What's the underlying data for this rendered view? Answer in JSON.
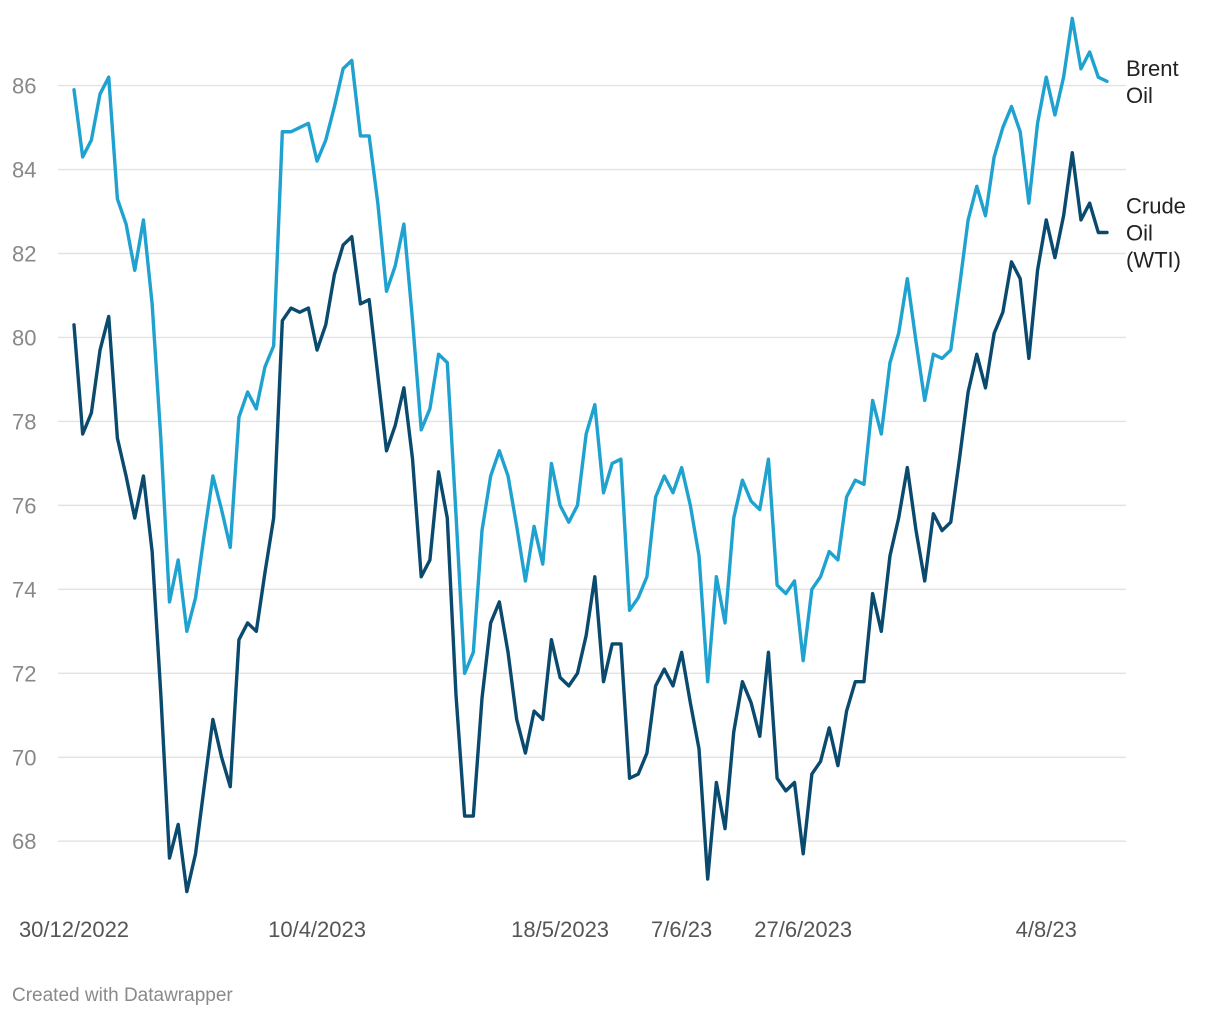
{
  "chart_data": {
    "type": "line",
    "title": "",
    "xlabel": "",
    "ylabel": "",
    "ylim": [
      66.6,
      87.8
    ],
    "yticks": [
      68,
      70,
      72,
      74,
      76,
      78,
      80,
      82,
      84,
      86
    ],
    "x_tick_labels": [
      {
        "index": 0,
        "label": "30/12/2022"
      },
      {
        "index": 28,
        "label": "10/4/2023"
      },
      {
        "index": 56,
        "label": "18/5/2023"
      },
      {
        "index": 70,
        "label": "7/6/23"
      },
      {
        "index": 84,
        "label": "27/6/2023"
      },
      {
        "index": 112,
        "label": "4/8/23"
      }
    ],
    "grid": true,
    "series": [
      {
        "name": "Brent Oil",
        "label_lines": [
          "Brent",
          "Oil"
        ],
        "color": "#1fa2cf",
        "values": [
          85.9,
          84.3,
          84.7,
          85.8,
          86.2,
          83.3,
          82.7,
          81.6,
          82.8,
          80.8,
          77.6,
          73.7,
          74.7,
          73.0,
          73.8,
          75.3,
          76.7,
          75.9,
          75.0,
          78.1,
          78.7,
          78.3,
          79.3,
          79.8,
          84.9,
          84.9,
          85.0,
          85.1,
          84.2,
          84.7,
          85.5,
          86.4,
          86.6,
          84.8,
          84.8,
          83.2,
          81.1,
          81.7,
          82.7,
          80.4,
          77.8,
          78.3,
          79.6,
          79.4,
          75.8,
          72.0,
          72.5,
          75.4,
          76.7,
          77.3,
          76.7,
          75.5,
          74.2,
          75.5,
          74.6,
          77.0,
          76.0,
          75.6,
          76.0,
          77.7,
          78.4,
          76.3,
          77.0,
          77.1,
          73.5,
          73.8,
          74.3,
          76.2,
          76.7,
          76.3,
          76.9,
          76.0,
          74.8,
          71.8,
          74.3,
          73.2,
          75.7,
          76.6,
          76.1,
          75.9,
          77.1,
          74.1,
          73.9,
          74.2,
          72.3,
          74.0,
          74.3,
          74.9,
          74.7,
          76.2,
          76.6,
          76.5,
          78.5,
          77.7,
          79.4,
          80.1,
          81.4,
          79.9,
          78.5,
          79.6,
          79.5,
          79.7,
          81.2,
          82.8,
          83.6,
          82.9,
          84.3,
          85.0,
          85.5,
          84.9,
          83.2,
          85.1,
          86.2,
          85.3,
          86.2,
          87.6,
          86.4,
          86.8,
          86.2,
          86.1
        ]
      },
      {
        "name": "Crude Oil (WTI)",
        "label_lines": [
          "Crude",
          "Oil",
          "(WTI)"
        ],
        "color": "#0a4a6e",
        "values": [
          80.3,
          77.7,
          78.2,
          79.7,
          80.5,
          77.6,
          76.7,
          75.7,
          76.7,
          74.9,
          71.5,
          67.6,
          68.4,
          66.8,
          67.7,
          69.3,
          70.9,
          70.0,
          69.3,
          72.8,
          73.2,
          73.0,
          74.4,
          75.7,
          80.4,
          80.7,
          80.6,
          80.7,
          79.7,
          80.3,
          81.5,
          82.2,
          82.4,
          80.8,
          80.9,
          79.1,
          77.3,
          77.9,
          78.8,
          77.1,
          74.3,
          74.7,
          76.8,
          75.7,
          71.5,
          68.6,
          68.6,
          71.4,
          73.2,
          73.7,
          72.5,
          70.9,
          70.1,
          71.1,
          70.9,
          72.8,
          71.9,
          71.7,
          72.0,
          72.9,
          74.3,
          71.8,
          72.7,
          72.7,
          69.5,
          69.6,
          70.1,
          71.7,
          72.1,
          71.7,
          72.5,
          71.3,
          70.2,
          67.1,
          69.4,
          68.3,
          70.6,
          71.8,
          71.3,
          70.5,
          72.5,
          69.5,
          69.2,
          69.4,
          67.7,
          69.6,
          69.9,
          70.7,
          69.8,
          71.1,
          71.8,
          71.8,
          73.9,
          73.0,
          74.8,
          75.7,
          76.9,
          75.4,
          74.2,
          75.8,
          75.4,
          75.6,
          77.1,
          78.7,
          79.6,
          78.8,
          80.1,
          80.6,
          81.8,
          81.4,
          79.5,
          81.6,
          82.8,
          81.9,
          82.9,
          84.4,
          82.8,
          83.2,
          82.5,
          82.5
        ]
      }
    ]
  },
  "footer": {
    "credit": "Created with Datawrapper"
  }
}
